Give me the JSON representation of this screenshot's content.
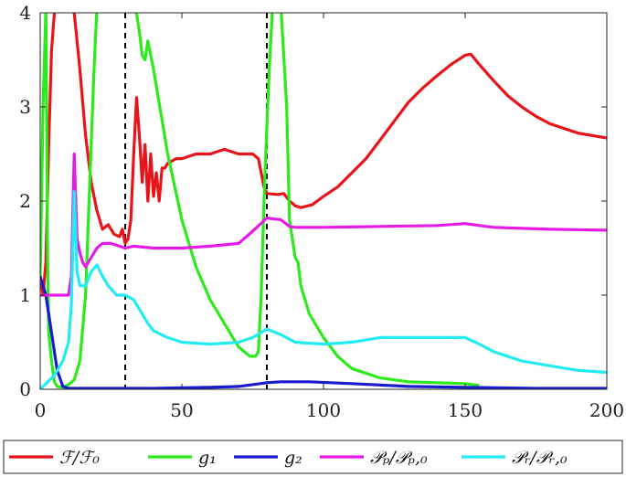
{
  "chart_data": {
    "type": "line",
    "xlim": [
      0,
      200
    ],
    "ylim": [
      0,
      4
    ],
    "x_ticks": [
      "0",
      "50",
      "100",
      "150",
      "200"
    ],
    "y_ticks": [
      "0",
      "1",
      "2",
      "3",
      "4"
    ],
    "grid": false,
    "legend_position": "bottom",
    "vlines": [
      30,
      80
    ],
    "series": [
      {
        "name": "ℱ/ℱ₀",
        "color": "#e8141a",
        "points": [
          [
            0,
            1.2
          ],
          [
            1,
            1.0
          ],
          [
            2,
            1.35
          ],
          [
            3,
            2.6
          ],
          [
            4,
            3.6
          ],
          [
            5,
            4.0
          ],
          [
            6,
            4.2
          ],
          [
            9,
            4.2
          ],
          [
            12,
            4.0
          ],
          [
            14,
            3.4
          ],
          [
            16,
            2.7
          ],
          [
            18,
            2.2
          ],
          [
            20,
            1.9
          ],
          [
            22,
            1.7
          ],
          [
            24,
            1.75
          ],
          [
            26,
            1.65
          ],
          [
            28,
            1.62
          ],
          [
            29,
            1.7
          ],
          [
            30,
            1.55
          ],
          [
            31,
            1.6
          ],
          [
            32,
            1.8
          ],
          [
            33,
            2.5
          ],
          [
            34,
            3.1
          ],
          [
            35,
            2.7
          ],
          [
            36,
            2.2
          ],
          [
            37,
            2.6
          ],
          [
            38,
            2.0
          ],
          [
            39,
            2.5
          ],
          [
            40,
            2.05
          ],
          [
            41,
            2.3
          ],
          [
            42,
            2.0
          ],
          [
            43,
            2.35
          ],
          [
            44,
            2.35
          ],
          [
            45,
            2.4
          ],
          [
            48,
            2.45
          ],
          [
            50,
            2.45
          ],
          [
            55,
            2.5
          ],
          [
            60,
            2.5
          ],
          [
            65,
            2.55
          ],
          [
            70,
            2.5
          ],
          [
            75,
            2.5
          ],
          [
            77,
            2.45
          ],
          [
            78,
            2.3
          ],
          [
            79,
            2.15
          ],
          [
            80,
            2.08
          ],
          [
            84,
            2.07
          ],
          [
            86,
            2.08
          ],
          [
            88,
            2.0
          ],
          [
            90,
            1.95
          ],
          [
            92,
            1.93
          ],
          [
            96,
            1.96
          ],
          [
            100,
            2.05
          ],
          [
            105,
            2.15
          ],
          [
            110,
            2.3
          ],
          [
            115,
            2.45
          ],
          [
            120,
            2.65
          ],
          [
            125,
            2.85
          ],
          [
            130,
            3.05
          ],
          [
            135,
            3.2
          ],
          [
            140,
            3.33
          ],
          [
            145,
            3.45
          ],
          [
            150,
            3.55
          ],
          [
            152,
            3.56
          ],
          [
            155,
            3.45
          ],
          [
            160,
            3.28
          ],
          [
            165,
            3.12
          ],
          [
            170,
            3.0
          ],
          [
            175,
            2.9
          ],
          [
            180,
            2.82
          ],
          [
            190,
            2.72
          ],
          [
            200,
            2.67
          ]
        ]
      },
      {
        "name": "g₁",
        "color": "#2cea1c",
        "points": [
          [
            0,
            1.2
          ],
          [
            1,
            3.0
          ],
          [
            2,
            4.2
          ],
          [
            2.6,
            1.4
          ],
          [
            3,
            0.6
          ],
          [
            4,
            0.3
          ],
          [
            5,
            0.08
          ],
          [
            6,
            0.03
          ],
          [
            8,
            0.02
          ],
          [
            10,
            0.05
          ],
          [
            12,
            0.1
          ],
          [
            14,
            0.3
          ],
          [
            16,
            1.0
          ],
          [
            17,
            1.8
          ],
          [
            18,
            2.6
          ],
          [
            19,
            3.4
          ],
          [
            20,
            4.2
          ],
          [
            32,
            4.2
          ],
          [
            34,
            4.0
          ],
          [
            35,
            3.8
          ],
          [
            36,
            3.55
          ],
          [
            37,
            3.5
          ],
          [
            38,
            3.7
          ],
          [
            39,
            3.55
          ],
          [
            40,
            3.4
          ],
          [
            45,
            2.5
          ],
          [
            50,
            1.8
          ],
          [
            55,
            1.3
          ],
          [
            60,
            0.95
          ],
          [
            65,
            0.7
          ],
          [
            68,
            0.55
          ],
          [
            70,
            0.45
          ],
          [
            72,
            0.4
          ],
          [
            74,
            0.35
          ],
          [
            76,
            0.35
          ],
          [
            77,
            0.4
          ],
          [
            78,
            1.0
          ],
          [
            79,
            2.0
          ],
          [
            80,
            2.8
          ],
          [
            81,
            3.5
          ],
          [
            82,
            4.2
          ],
          [
            85,
            4.2
          ],
          [
            87,
            3.0
          ],
          [
            88,
            1.8
          ],
          [
            89,
            1.6
          ],
          [
            90,
            1.4
          ],
          [
            91,
            1.35
          ],
          [
            92,
            1.1
          ],
          [
            95,
            0.8
          ],
          [
            100,
            0.55
          ],
          [
            105,
            0.35
          ],
          [
            110,
            0.22
          ],
          [
            120,
            0.12
          ],
          [
            130,
            0.08
          ],
          [
            140,
            0.07
          ],
          [
            150,
            0.06
          ],
          [
            155,
            0.04
          ]
        ]
      },
      {
        "name": "g₂",
        "color": "#1a1ad0",
        "points": [
          [
            0,
            1.2
          ],
          [
            2,
            1.0
          ],
          [
            4,
            0.6
          ],
          [
            6,
            0.2
          ],
          [
            8,
            0.03
          ],
          [
            10,
            0.01
          ],
          [
            20,
            0.01
          ],
          [
            40,
            0.01
          ],
          [
            60,
            0.02
          ],
          [
            70,
            0.03
          ],
          [
            75,
            0.05
          ],
          [
            80,
            0.07
          ],
          [
            85,
            0.08
          ],
          [
            95,
            0.08
          ],
          [
            110,
            0.06
          ],
          [
            130,
            0.03
          ],
          [
            150,
            0.02
          ],
          [
            175,
            0.01
          ],
          [
            200,
            0.01
          ]
        ]
      },
      {
        "name": "𝒫ₚ/𝒫ₚ,₀",
        "color": "#e61ae6",
        "points": [
          [
            0,
            1.0
          ],
          [
            5,
            1.0
          ],
          [
            10,
            1.0
          ],
          [
            11,
            1.2
          ],
          [
            12,
            2.5
          ],
          [
            13,
            1.6
          ],
          [
            14,
            1.45
          ],
          [
            15,
            1.35
          ],
          [
            16,
            1.3
          ],
          [
            18,
            1.4
          ],
          [
            20,
            1.5
          ],
          [
            22,
            1.55
          ],
          [
            25,
            1.55
          ],
          [
            28,
            1.52
          ],
          [
            30,
            1.5
          ],
          [
            33,
            1.52
          ],
          [
            40,
            1.5
          ],
          [
            50,
            1.5
          ],
          [
            60,
            1.52
          ],
          [
            70,
            1.55
          ],
          [
            75,
            1.68
          ],
          [
            80,
            1.82
          ],
          [
            85,
            1.8
          ],
          [
            88,
            1.73
          ],
          [
            90,
            1.72
          ],
          [
            100,
            1.72
          ],
          [
            120,
            1.73
          ],
          [
            140,
            1.74
          ],
          [
            150,
            1.76
          ],
          [
            160,
            1.72
          ],
          [
            170,
            1.71
          ],
          [
            180,
            1.7
          ],
          [
            200,
            1.69
          ]
        ]
      },
      {
        "name": "𝒫ᵣ/𝒫ᵣ,₀",
        "color": "#22ecf2",
        "points": [
          [
            0,
            0.0
          ],
          [
            5,
            0.15
          ],
          [
            8,
            0.3
          ],
          [
            10,
            0.5
          ],
          [
            11,
            0.9
          ],
          [
            12,
            2.1
          ],
          [
            13,
            1.25
          ],
          [
            14,
            1.1
          ],
          [
            16,
            1.1
          ],
          [
            18,
            1.25
          ],
          [
            20,
            1.32
          ],
          [
            22,
            1.2
          ],
          [
            24,
            1.1
          ],
          [
            27,
            1.0
          ],
          [
            30,
            1.0
          ],
          [
            33,
            0.95
          ],
          [
            35,
            0.85
          ],
          [
            38,
            0.7
          ],
          [
            40,
            0.62
          ],
          [
            45,
            0.55
          ],
          [
            50,
            0.5
          ],
          [
            60,
            0.48
          ],
          [
            70,
            0.5
          ],
          [
            75,
            0.55
          ],
          [
            80,
            0.64
          ],
          [
            85,
            0.58
          ],
          [
            90,
            0.5
          ],
          [
            100,
            0.48
          ],
          [
            110,
            0.5
          ],
          [
            120,
            0.55
          ],
          [
            130,
            0.55
          ],
          [
            140,
            0.55
          ],
          [
            150,
            0.55
          ],
          [
            155,
            0.48
          ],
          [
            160,
            0.4
          ],
          [
            170,
            0.3
          ],
          [
            180,
            0.25
          ],
          [
            190,
            0.2
          ],
          [
            200,
            0.18
          ]
        ]
      }
    ]
  }
}
